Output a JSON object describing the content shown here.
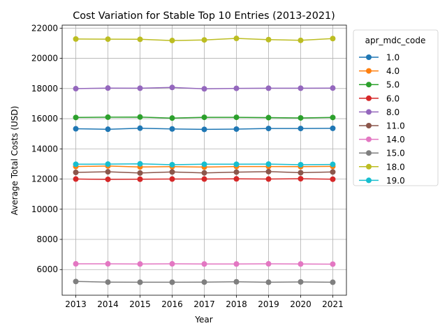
{
  "chart_data": {
    "type": "line",
    "title": "Cost Variation for Stable Top 10 Entries (2013-2021)",
    "xlabel": "Year",
    "ylabel": "Average Total Costs (USD)",
    "x": [
      2013,
      2014,
      2015,
      2016,
      2017,
      2018,
      2019,
      2020,
      2021
    ],
    "ylim": [
      4300,
      22200
    ],
    "yticks": [
      6000,
      8000,
      10000,
      12000,
      14000,
      16000,
      18000,
      20000,
      22000
    ],
    "grid": true,
    "legend": {
      "title": "apr_mdc_code",
      "placement": "outside-right-top"
    },
    "series": [
      {
        "name": "1.0",
        "color": "#1f77b4",
        "values": [
          15330,
          15300,
          15370,
          15320,
          15290,
          15310,
          15350,
          15350,
          15360
        ]
      },
      {
        "name": "4.0",
        "color": "#ff7f0e",
        "values": [
          12830,
          12860,
          12800,
          12820,
          12790,
          12830,
          12830,
          12820,
          12840
        ]
      },
      {
        "name": "5.0",
        "color": "#2ca02c",
        "values": [
          16080,
          16100,
          16110,
          16040,
          16090,
          16090,
          16070,
          16050,
          16080
        ]
      },
      {
        "name": "6.0",
        "color": "#d62728",
        "values": [
          12000,
          11980,
          11990,
          12000,
          12000,
          12010,
          12000,
          12020,
          11990
        ]
      },
      {
        "name": "8.0",
        "color": "#9467bd",
        "values": [
          17990,
          18030,
          18020,
          18070,
          17980,
          18010,
          18020,
          18020,
          18030
        ]
      },
      {
        "name": "11.0",
        "color": "#8c564b",
        "values": [
          12440,
          12480,
          12400,
          12470,
          12410,
          12460,
          12490,
          12420,
          12470
        ]
      },
      {
        "name": "14.0",
        "color": "#e377c2",
        "values": [
          6380,
          6380,
          6370,
          6380,
          6370,
          6370,
          6380,
          6370,
          6360
        ]
      },
      {
        "name": "15.0",
        "color": "#7f7f7f",
        "values": [
          5210,
          5170,
          5160,
          5160,
          5170,
          5190,
          5160,
          5180,
          5160
        ]
      },
      {
        "name": "18.0",
        "color": "#bcbd22",
        "values": [
          21280,
          21270,
          21260,
          21180,
          21220,
          21320,
          21240,
          21190,
          21310
        ]
      },
      {
        "name": "19.0",
        "color": "#17becf",
        "values": [
          12980,
          12990,
          13010,
          12950,
          12980,
          12980,
          12990,
          12950,
          12970
        ]
      }
    ]
  }
}
